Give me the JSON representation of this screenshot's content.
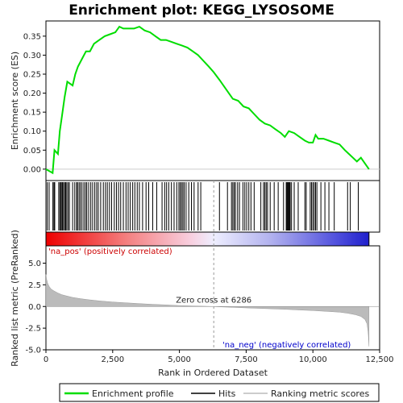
{
  "chart_data": {
    "type": "line",
    "title": "Enrichment plot: KEGG_LYSOSOME",
    "xlabel": "Rank in Ordered Dataset",
    "ylabel_top": "Enrichment score (ES)",
    "ylabel_bottom": "Ranked list metric (PreRanked)",
    "xlim": [
      0,
      12500
    ],
    "xticks": [
      0,
      2500,
      5000,
      7500,
      10000,
      12500
    ],
    "xtick_labels": [
      "0",
      "2,500",
      "5,000",
      "7,500",
      "10,000",
      "12,500"
    ],
    "es_ylim": [
      -0.03,
      0.39
    ],
    "es_yticks": [
      0.0,
      0.05,
      0.1,
      0.15,
      0.2,
      0.25,
      0.3,
      0.35
    ],
    "es_ytick_labels": [
      "0.00",
      "0.05",
      "0.10",
      "0.15",
      "0.20",
      "0.25",
      "0.30",
      "0.35"
    ],
    "metric_ylim": [
      -5,
      7
    ],
    "metric_yticks": [
      -5.0,
      -2.5,
      0.0,
      2.5,
      5.0
    ],
    "metric_ytick_labels": [
      "-5.0",
      "-2.5",
      "0.0",
      "2.5",
      "5.0"
    ],
    "n_genes": 12100,
    "zero_cross": 6286,
    "zero_cross_label": "Zero cross at 6286",
    "pos_label": "'na_pos' (positively correlated)",
    "neg_label": "'na_neg' (negatively correlated)",
    "es_series": {
      "name": "Enrichment profile",
      "color": "#00dd00",
      "x": [
        0,
        250,
        320,
        450,
        520,
        600,
        700,
        800,
        1000,
        1100,
        1200,
        1350,
        1500,
        1650,
        1800,
        2000,
        2200,
        2400,
        2600,
        2750,
        2900,
        3100,
        3300,
        3500,
        3700,
        3900,
        4100,
        4300,
        4500,
        4700,
        4900,
        5100,
        5300,
        5500,
        5700,
        5900,
        6100,
        6286,
        6500,
        6800,
        7000,
        7200,
        7400,
        7600,
        7800,
        8000,
        8200,
        8400,
        8600,
        8800,
        8950,
        9100,
        9300,
        9500,
        9700,
        9850,
        10000,
        10100,
        10200,
        10400,
        10600,
        10800,
        11000,
        11200,
        11350,
        11500,
        11650,
        11800,
        11950,
        12100
      ],
      "y": [
        0.0,
        -0.01,
        0.05,
        0.04,
        0.1,
        0.14,
        0.19,
        0.23,
        0.22,
        0.25,
        0.27,
        0.29,
        0.31,
        0.31,
        0.33,
        0.34,
        0.35,
        0.355,
        0.36,
        0.375,
        0.37,
        0.37,
        0.37,
        0.375,
        0.365,
        0.36,
        0.35,
        0.34,
        0.34,
        0.335,
        0.33,
        0.325,
        0.32,
        0.31,
        0.3,
        0.285,
        0.27,
        0.255,
        0.235,
        0.205,
        0.185,
        0.18,
        0.165,
        0.16,
        0.145,
        0.13,
        0.12,
        0.115,
        0.105,
        0.095,
        0.085,
        0.1,
        0.095,
        0.085,
        0.075,
        0.07,
        0.07,
        0.09,
        0.08,
        0.08,
        0.075,
        0.07,
        0.065,
        0.05,
        0.04,
        0.03,
        0.02,
        0.03,
        0.015,
        0.0
      ]
    },
    "hits_name": "Hits",
    "hits": [
      50,
      120,
      260,
      300,
      330,
      480,
      520,
      560,
      600,
      620,
      660,
      700,
      740,
      780,
      830,
      880,
      1000,
      1080,
      1150,
      1180,
      1240,
      1290,
      1350,
      1420,
      1480,
      1530,
      1600,
      1680,
      1750,
      1830,
      1900,
      1960,
      2050,
      2150,
      2230,
      2300,
      2380,
      2460,
      2560,
      2640,
      2720,
      2800,
      2900,
      3000,
      3080,
      3160,
      3250,
      3330,
      3420,
      3500,
      3620,
      3750,
      3850,
      4000,
      4150,
      4350,
      4450,
      4520,
      4600,
      4700,
      4800,
      4900,
      4980,
      5030,
      5080,
      5130,
      5180,
      5250,
      5350,
      5450,
      5550,
      5700,
      5800,
      6500,
      6800,
      6950,
      7000,
      7050,
      7100,
      7180,
      7250,
      7380,
      7450,
      7520,
      7600,
      7680,
      7800,
      8050,
      8150,
      8200,
      8250,
      8300,
      8400,
      8550,
      8700,
      8900,
      9000,
      9030,
      9060,
      9090,
      9120,
      9150,
      9200,
      9300,
      9450,
      9700,
      9750,
      9900,
      9950,
      10000,
      10050,
      10100,
      10150,
      10300,
      10450,
      10600,
      10800,
      11300,
      11400,
      11700
    ],
    "metric_name": "Ranking metric scores",
    "metric_curve": {
      "x": [
        0,
        20,
        60,
        120,
        200,
        300,
        450,
        600,
        800,
        1000,
        1300,
        1600,
        2000,
        2500,
        3000,
        3500,
        4000,
        4500,
        5000,
        5500,
        6000,
        6286,
        6600,
        7000,
        7500,
        8000,
        8500,
        9000,
        9500,
        10000,
        10500,
        11000,
        11300,
        11600,
        11800,
        11950,
        12030,
        12070,
        12100
      ],
      "y": [
        3.7,
        3.2,
        2.7,
        2.3,
        2.0,
        1.8,
        1.55,
        1.35,
        1.2,
        1.05,
        0.9,
        0.78,
        0.65,
        0.52,
        0.42,
        0.33,
        0.25,
        0.18,
        0.11,
        0.06,
        0.02,
        0.0,
        -0.05,
        -0.1,
        -0.16,
        -0.22,
        -0.27,
        -0.33,
        -0.4,
        -0.47,
        -0.56,
        -0.66,
        -0.78,
        -0.95,
        -1.15,
        -1.5,
        -2.0,
        -3.0,
        -4.6
      ]
    }
  }
}
